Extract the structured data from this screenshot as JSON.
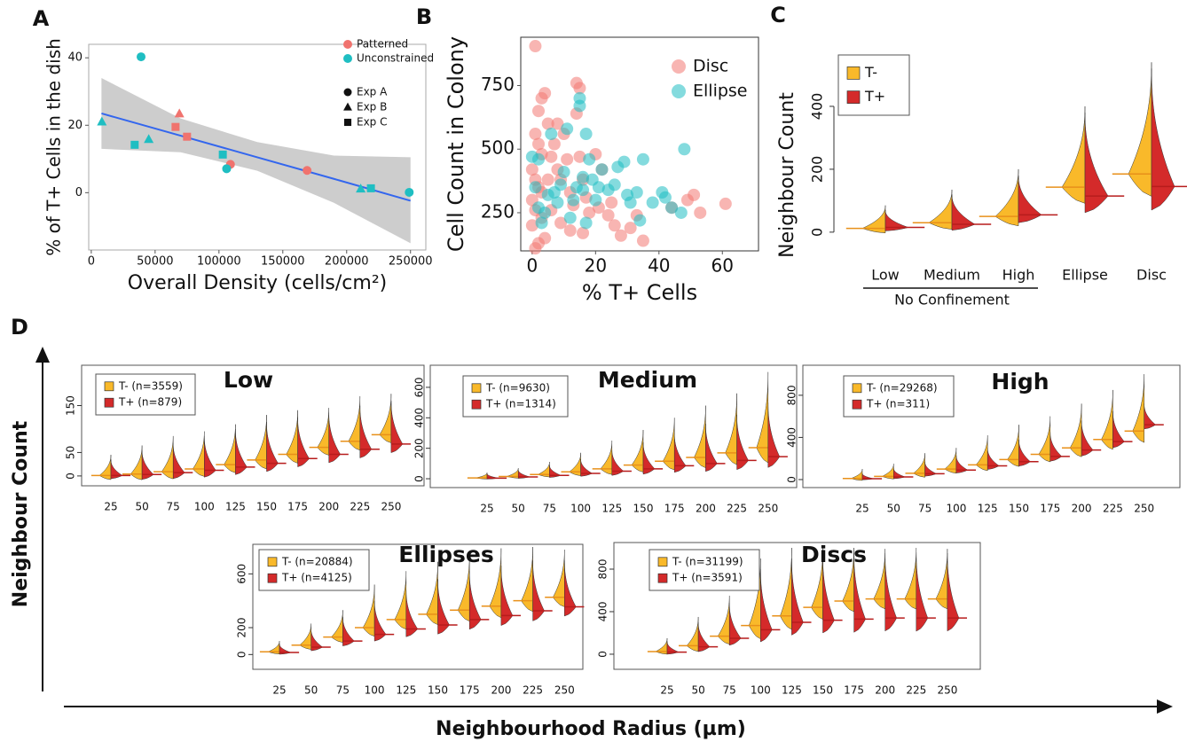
{
  "panel_labels": [
    "A",
    "B",
    "C",
    "D"
  ],
  "panel_d": {
    "y_label": "Neighbour Count",
    "x_label": "Neighbourhood Radius (µm)"
  },
  "chart_data": [
    {
      "type": "scatter",
      "x_label": "Overall Density (cells/cm²)",
      "y_label": "% of T+ Cells in the dish",
      "xlim": [
        -2000,
        262000
      ],
      "ylim": [
        -17,
        44
      ],
      "xticks": [
        0,
        50000,
        100000,
        150000,
        200000,
        250000
      ],
      "yticks": [
        0,
        20,
        40
      ],
      "series": [
        {
          "name": "Patterned",
          "color": "#f0736e",
          "x": [
            69000,
            66000,
            75000,
            109000,
            169000
          ],
          "y": [
            23.4,
            19.5,
            16.6,
            8.4,
            6.6
          ],
          "markers": [
            "triangle",
            "square",
            "square",
            "circle",
            "circle"
          ]
        },
        {
          "name": "Unconstrained",
          "color": "#1fbec2",
          "x": [
            8300,
            39000,
            34000,
            45000,
            103000,
            106000,
            211000,
            219000,
            249000
          ],
          "y": [
            21,
            40.3,
            14.2,
            15.8,
            11.3,
            7.1,
            1.1,
            1.3,
            0.1
          ],
          "markers": [
            "triangle",
            "circle",
            "square",
            "triangle",
            "square",
            "circle",
            "triangle",
            "square",
            "circle"
          ]
        }
      ],
      "marker_legend": [
        {
          "name": "Exp A",
          "marker": "circle"
        },
        {
          "name": "Exp B",
          "marker": "triangle"
        },
        {
          "name": "Exp C",
          "marker": "square"
        }
      ],
      "fit": {
        "color": "#3366ee",
        "band_color": "#c8c8c8",
        "x": [
          8000,
          70000,
          130000,
          190000,
          250000
        ],
        "y": [
          23.5,
          16.9,
          10.5,
          4.1,
          -2.4
        ],
        "lower": [
          13,
          12,
          6.5,
          -3,
          -15
        ],
        "upper": [
          34,
          22,
          15,
          11,
          10.5
        ]
      }
    },
    {
      "type": "scatter",
      "x_label": "% T+ Cells",
      "y_label": "Cell Count in Colony",
      "xlim": [
        -3.6,
        71.4
      ],
      "ylim": [
        100,
        940
      ],
      "xticks": [
        0,
        20,
        40,
        60
      ],
      "yticks": [
        250,
        500,
        750
      ],
      "marker_opacity": 0.55,
      "legend": "top-right",
      "series": [
        {
          "name": "Disc",
          "color": "#f27873",
          "x": [
            1,
            2,
            3,
            4,
            5,
            1,
            2,
            3,
            0,
            1,
            2,
            0,
            1,
            3,
            0,
            2,
            1,
            6,
            7,
            8,
            9,
            10,
            11,
            12,
            13,
            14,
            15,
            14,
            15,
            16,
            17,
            18,
            20,
            22,
            25,
            26,
            28,
            31,
            35,
            44,
            49,
            51,
            53,
            61,
            4,
            6,
            9,
            12,
            16,
            8,
            5,
            3,
            21,
            24,
            33
          ],
          "y": [
            905,
            650,
            700,
            720,
            600,
            560,
            520,
            480,
            420,
            380,
            350,
            300,
            260,
            230,
            200,
            130,
            110,
            470,
            520,
            420,
            380,
            560,
            460,
            330,
            280,
            760,
            740,
            640,
            470,
            380,
            310,
            250,
            480,
            420,
            290,
            200,
            160,
            190,
            140,
            270,
            300,
            320,
            250,
            285,
            150,
            260,
            210,
            180,
            170,
            600,
            380,
            330,
            270,
            240,
            240
          ]
        },
        {
          "name": "Ellipse",
          "color": "#1fbec2",
          "x": [
            0,
            2,
            1,
            2,
            3,
            4,
            5,
            6,
            7,
            8,
            9,
            10,
            11,
            12,
            13,
            14,
            15,
            15,
            16,
            16,
            17,
            18,
            19,
            20,
            21,
            22,
            24,
            26,
            27,
            29,
            30,
            31,
            33,
            35,
            38,
            41,
            42,
            44,
            47,
            48,
            34,
            17
          ],
          "y": [
            470,
            460,
            350,
            270,
            210,
            250,
            320,
            560,
            330,
            290,
            360,
            410,
            580,
            230,
            300,
            350,
            700,
            670,
            340,
            390,
            560,
            460,
            380,
            300,
            350,
            420,
            340,
            360,
            430,
            450,
            320,
            290,
            330,
            460,
            290,
            330,
            310,
            270,
            250,
            500,
            220,
            210
          ]
        }
      ]
    },
    {
      "type": "violin",
      "y_label": "Neighbour Count",
      "categories": [
        "Low",
        "Medium",
        "High",
        "Ellipse",
        "Disc"
      ],
      "x_group_label": "No Confinement",
      "ylim": [
        -37,
        569
      ],
      "yticks": [
        0,
        200,
        400
      ],
      "series": [
        {
          "name": "T-",
          "color": "#f9b92a",
          "line_color": "#e8901a",
          "values": [
            12,
            30,
            50,
            143,
            185
          ],
          "max": [
            85,
            135,
            200,
            400,
            540
          ]
        },
        {
          "name": "T+",
          "color": "#d42a2a",
          "line_color": "#b71c1c",
          "values": [
            15,
            25,
            55,
            115,
            145
          ],
          "max": [
            70,
            120,
            180,
            380,
            520
          ]
        }
      ]
    },
    {
      "type": "violin",
      "title": "Low",
      "categories": [
        25,
        50,
        75,
        100,
        125,
        150,
        175,
        200,
        225,
        250
      ],
      "ylim": [
        -21,
        236
      ],
      "yticks": [
        0,
        50,
        150
      ],
      "series": [
        {
          "name": "T- (n=3559)",
          "color": "#f9b92a",
          "line_color": "#e8901a",
          "values": [
            1,
            4,
            9,
            15,
            24,
            34,
            46,
            61,
            74,
            88
          ],
          "max": [
            45,
            65,
            85,
            95,
            110,
            130,
            140,
            145,
            170,
            175
          ]
        },
        {
          "name": "T+ (n=879)",
          "color": "#d42a2a",
          "line_color": "#b71c1c",
          "values": [
            1,
            3,
            7,
            12,
            19,
            27,
            37,
            46,
            57,
            68
          ],
          "max": [
            35,
            55,
            70,
            85,
            100,
            115,
            125,
            135,
            150,
            160
          ]
        }
      ]
    },
    {
      "type": "violin",
      "title": "Medium",
      "categories": [
        25,
        50,
        75,
        100,
        125,
        150,
        175,
        200,
        225,
        250
      ],
      "ylim": [
        -58,
        745
      ],
      "yticks": [
        0,
        200,
        400,
        600
      ],
      "series": [
        {
          "name": "T- (n=9630)",
          "color": "#f9b92a",
          "line_color": "#e8901a",
          "values": [
            5,
            15,
            28,
            45,
            65,
            90,
            115,
            140,
            170,
            204
          ],
          "max": [
            40,
            70,
            110,
            170,
            250,
            320,
            400,
            480,
            560,
            700
          ]
        },
        {
          "name": "T+ (n=1314)",
          "color": "#d42a2a",
          "line_color": "#b71c1c",
          "values": [
            4,
            12,
            22,
            35,
            50,
            65,
            85,
            100,
            120,
            145
          ],
          "max": [
            35,
            60,
            90,
            130,
            190,
            240,
            300,
            360,
            420,
            500
          ]
        }
      ]
    },
    {
      "type": "violin",
      "title": "High",
      "categories": [
        25,
        50,
        75,
        100,
        125,
        150,
        175,
        200,
        225,
        250
      ],
      "ylim": [
        -76,
        1085
      ],
      "yticks": [
        0,
        400,
        800
      ],
      "series": [
        {
          "name": "T- (n=29268)",
          "color": "#f9b92a",
          "line_color": "#e8901a",
          "values": [
            10,
            30,
            60,
            100,
            140,
            190,
            240,
            300,
            380,
            460
          ],
          "max": [
            100,
            150,
            250,
            300,
            420,
            520,
            600,
            720,
            850,
            1000
          ]
        },
        {
          "name": "T+ (n=311)",
          "color": "#d42a2a",
          "line_color": "#b71c1c",
          "values": [
            8,
            25,
            55,
            90,
            130,
            170,
            220,
            280,
            360,
            520
          ],
          "max": [
            60,
            110,
            170,
            230,
            300,
            380,
            450,
            560,
            650,
            720
          ]
        }
      ]
    },
    {
      "type": "violin",
      "title": "Ellipses",
      "categories": [
        25,
        50,
        75,
        100,
        125,
        150,
        175,
        200,
        225,
        250
      ],
      "ylim": [
        -110,
        820
      ],
      "yticks": [
        0,
        200,
        600
      ],
      "series": [
        {
          "name": "T- (n=20884)",
          "color": "#f9b92a",
          "line_color": "#e8901a",
          "values": [
            20,
            70,
            130,
            200,
            260,
            300,
            330,
            360,
            400,
            426
          ],
          "max": [
            100,
            230,
            330,
            520,
            620,
            690,
            740,
            790,
            800,
            780
          ]
        },
        {
          "name": "T+ (n=4125)",
          "color": "#d42a2a",
          "line_color": "#b71c1c",
          "values": [
            15,
            55,
            100,
            150,
            190,
            220,
            260,
            290,
            325,
            355
          ],
          "max": [
            80,
            190,
            280,
            400,
            480,
            560,
            620,
            660,
            700,
            700
          ]
        }
      ]
    },
    {
      "type": "violin",
      "title": "Discs",
      "categories": [
        25,
        50,
        75,
        100,
        125,
        150,
        175,
        200,
        225,
        250
      ],
      "ylim": [
        -142,
        1050
      ],
      "yticks": [
        0,
        400,
        800
      ],
      "series": [
        {
          "name": "T- (n=31199)",
          "color": "#f9b92a",
          "line_color": "#e8901a",
          "values": [
            25,
            80,
            170,
            270,
            360,
            440,
            500,
            520,
            520,
            520
          ],
          "max": [
            150,
            350,
            550,
            900,
            1000,
            1000,
            1000,
            990,
            1000,
            990
          ]
        },
        {
          "name": "T+ (n=3591)",
          "color": "#d42a2a",
          "line_color": "#b71c1c",
          "values": [
            20,
            70,
            150,
            230,
            300,
            320,
            330,
            340,
            340,
            340
          ],
          "max": [
            120,
            300,
            480,
            800,
            900,
            920,
            950,
            950,
            960,
            950
          ]
        }
      ]
    }
  ]
}
